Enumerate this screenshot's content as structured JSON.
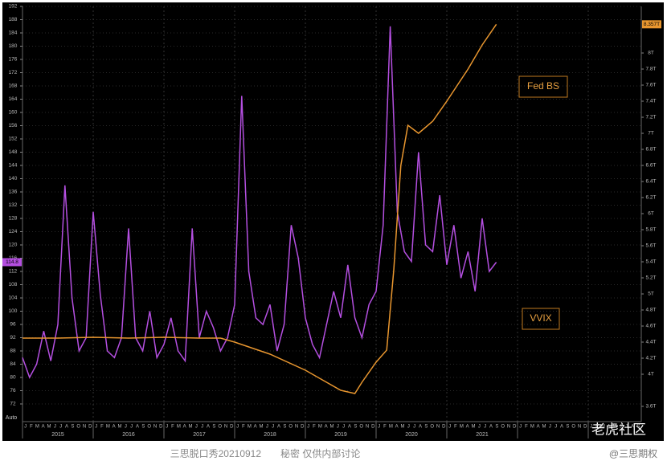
{
  "chart_data": {
    "type": "line",
    "series": [
      {
        "name": "VVIX",
        "color": "#b44fe0",
        "axis": "y",
        "x": [
          2015.0,
          2015.1,
          2015.2,
          2015.3,
          2015.4,
          2015.5,
          2015.6,
          2015.7,
          2015.8,
          2015.9,
          2016.0,
          2016.1,
          2016.2,
          2016.3,
          2016.4,
          2016.5,
          2016.6,
          2016.7,
          2016.8,
          2016.9,
          2017.0,
          2017.1,
          2017.2,
          2017.3,
          2017.4,
          2017.5,
          2017.6,
          2017.7,
          2017.8,
          2017.9,
          2018.0,
          2018.1,
          2018.2,
          2018.3,
          2018.4,
          2018.5,
          2018.6,
          2018.7,
          2018.8,
          2018.9,
          2019.0,
          2019.1,
          2019.2,
          2019.3,
          2019.4,
          2019.5,
          2019.6,
          2019.7,
          2019.8,
          2019.9,
          2020.0,
          2020.1,
          2020.2,
          2020.3,
          2020.4,
          2020.5,
          2020.6,
          2020.7,
          2020.8,
          2020.9,
          2021.0,
          2021.1,
          2021.2,
          2021.3,
          2021.4,
          2021.5,
          2021.6,
          2021.7
        ],
        "values": [
          86,
          80,
          84,
          94,
          85,
          96,
          138,
          104,
          88,
          92,
          130,
          105,
          88,
          86,
          92,
          125,
          92,
          88,
          100,
          86,
          90,
          98,
          88,
          85,
          125,
          92,
          100,
          95,
          88,
          92,
          102,
          165,
          112,
          98,
          96,
          102,
          88,
          96,
          126,
          116,
          98,
          90,
          86,
          96,
          106,
          98,
          114,
          98,
          92,
          102,
          106,
          126,
          186,
          130,
          118,
          115,
          148,
          120,
          118,
          135,
          114,
          126,
          110,
          118,
          106,
          128,
          112,
          114.8
        ],
        "value_labels": [
          null,
          null,
          null,
          null,
          null,
          null,
          null,
          null,
          null,
          null,
          null,
          null,
          null,
          null,
          null,
          null,
          null,
          null,
          null,
          null,
          null,
          null,
          null,
          null,
          null,
          null,
          null,
          null,
          null,
          null,
          null,
          null,
          null,
          null,
          null,
          null,
          null,
          null,
          null,
          null,
          null,
          null,
          null,
          null,
          null,
          null,
          null,
          null,
          null,
          null,
          null,
          null,
          null,
          null,
          null,
          null,
          null,
          null,
          null,
          null,
          null,
          null,
          null,
          null,
          null,
          null,
          null,
          "114.8"
        ]
      },
      {
        "name": "Fed BS",
        "color": "#e8962f",
        "axis": "y2",
        "x": [
          2015.0,
          2015.5,
          2016.0,
          2016.5,
          2017.0,
          2017.5,
          2017.8,
          2018.0,
          2018.5,
          2019.0,
          2019.5,
          2019.7,
          2019.8,
          2020.0,
          2020.15,
          2020.25,
          2020.35,
          2020.45,
          2020.6,
          2020.8,
          2021.0,
          2021.3,
          2021.5,
          2021.7
        ],
        "values": [
          4.45,
          4.45,
          4.46,
          4.45,
          4.46,
          4.45,
          4.45,
          4.4,
          4.25,
          4.05,
          3.8,
          3.76,
          3.9,
          4.15,
          4.3,
          5.3,
          6.6,
          7.1,
          7.0,
          7.15,
          7.4,
          7.8,
          8.1,
          8.357
        ],
        "value_labels": [
          null,
          null,
          null,
          null,
          null,
          null,
          null,
          null,
          null,
          null,
          null,
          null,
          null,
          null,
          null,
          null,
          null,
          null,
          null,
          null,
          null,
          null,
          null,
          "8.357T"
        ]
      }
    ],
    "xlim": [
      2015.0,
      2023.75
    ],
    "xticks": [
      {
        "value": 2015.5,
        "label": "2015"
      },
      {
        "value": 2016.5,
        "label": "2016"
      },
      {
        "value": 2017.5,
        "label": "2017"
      },
      {
        "value": 2018.5,
        "label": "2018"
      },
      {
        "value": 2019.5,
        "label": "2019"
      },
      {
        "value": 2020.5,
        "label": "2020"
      },
      {
        "value": 2021.5,
        "label": "2021"
      }
    ],
    "month_labels": [
      "J",
      "F",
      "M",
      "A",
      "M",
      "J",
      "J",
      "A",
      "S",
      "O",
      "N",
      "D"
    ],
    "ylim": [
      72,
      192
    ],
    "yticks": [
      72,
      76,
      80,
      84,
      88,
      92,
      96,
      100,
      104,
      108,
      112,
      116,
      120,
      124,
      128,
      132,
      136,
      140,
      144,
      148,
      152,
      156,
      160,
      164,
      168,
      172,
      176,
      180,
      184,
      188,
      192
    ],
    "y2lim": [
      3.63,
      8.58
    ],
    "y2ticks": [
      {
        "value": 3.6,
        "label": "3.6T"
      },
      {
        "value": 4,
        "label": "4T"
      },
      {
        "value": 4.2,
        "label": "4.2T"
      },
      {
        "value": 4.4,
        "label": "4.4T"
      },
      {
        "value": 4.6,
        "label": "4.6T"
      },
      {
        "value": 4.8,
        "label": "4.8T"
      },
      {
        "value": 5,
        "label": "5T"
      },
      {
        "value": 5.2,
        "label": "5.2T"
      },
      {
        "value": 5.4,
        "label": "5.4T"
      },
      {
        "value": 5.6,
        "label": "5.6T"
      },
      {
        "value": 5.8,
        "label": "5.8T"
      },
      {
        "value": 6,
        "label": "6T"
      },
      {
        "value": 6.2,
        "label": "6.2T"
      },
      {
        "value": 6.4,
        "label": "6.4T"
      },
      {
        "value": 6.6,
        "label": "6.6T"
      },
      {
        "value": 6.8,
        "label": "6.8T"
      },
      {
        "value": 7,
        "label": "7T"
      },
      {
        "value": 7.2,
        "label": "7.2T"
      },
      {
        "value": 7.4,
        "label": "7.4T"
      },
      {
        "value": 7.6,
        "label": "7.6T"
      },
      {
        "value": 7.8,
        "label": "7.8T"
      },
      {
        "value": 8,
        "label": "8T"
      }
    ],
    "grid": true,
    "axis_mode_label": "Auto",
    "footer": "三思脱口秀20210912　　秘密 仅供内部讨论",
    "watermark": "老虎社区",
    "credit": "@三思期权"
  }
}
